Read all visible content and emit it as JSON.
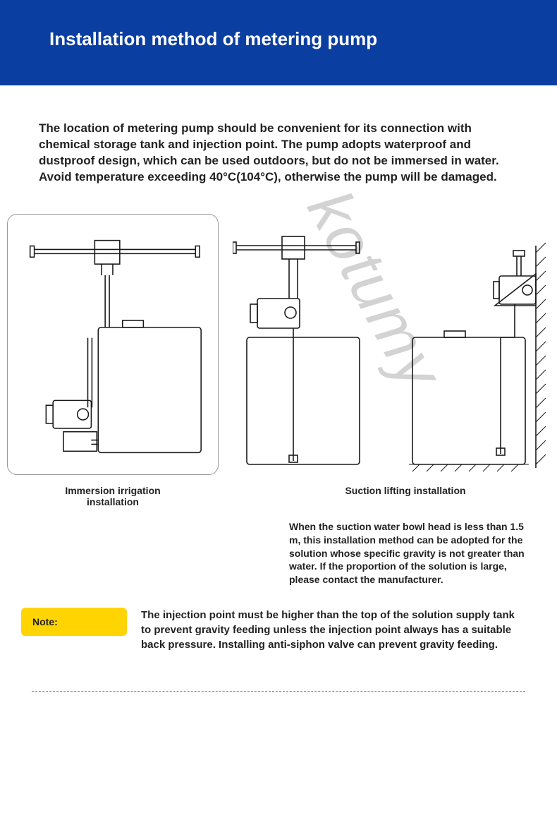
{
  "header": {
    "title": "Installation method of metering pump",
    "bg_color": "#0a3ea0"
  },
  "intro": {
    "text": "The location of metering pump should be convenient for its connection with chemical storage tank and injection point. The pump adopts waterproof and dustproof design, which can be used outdoors, but do not be immersed in water. Avoid temperature exceeding 40°C(104°C), otherwise the pump will be damaged."
  },
  "diagrams": {
    "left_caption": "Immersion irrigation\ninstallation",
    "right_caption": "Suction lifting installation",
    "suction_description": "When the suction water bowl head is less than 1.5 m, this installation method can be adopted for the solution whose specific gravity is not greater than water. If the proportion of the solution is large, please contact the manufacturer.",
    "stroke_color": "#1a1a1a",
    "stroke_width": 1.6,
    "card_border_color": "#999999"
  },
  "note": {
    "label": "Note:",
    "bg_color": "#ffd400",
    "text": "The injection point must be higher than the top of the solution supply tank to prevent gravity feeding unless the injection point always has a suitable back pressure. Installing anti-siphon valve can prevent gravity feeding."
  },
  "watermark": {
    "text": "kotumy",
    "color": "#cfcfcf"
  }
}
